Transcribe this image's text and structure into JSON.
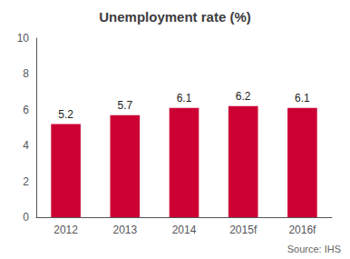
{
  "chart_data": {
    "type": "bar",
    "title": "Unemployment rate (%)",
    "categories": [
      "2012",
      "2013",
      "2014",
      "2015f",
      "2016f"
    ],
    "values": [
      5.2,
      5.7,
      6.1,
      6.2,
      6.1
    ],
    "color": "#cc0033",
    "ylim": [
      0,
      10
    ],
    "yticks": [
      0,
      2,
      4,
      6,
      8,
      10
    ],
    "grid": false,
    "data_labels": true,
    "annotation": "Source: IHS"
  }
}
